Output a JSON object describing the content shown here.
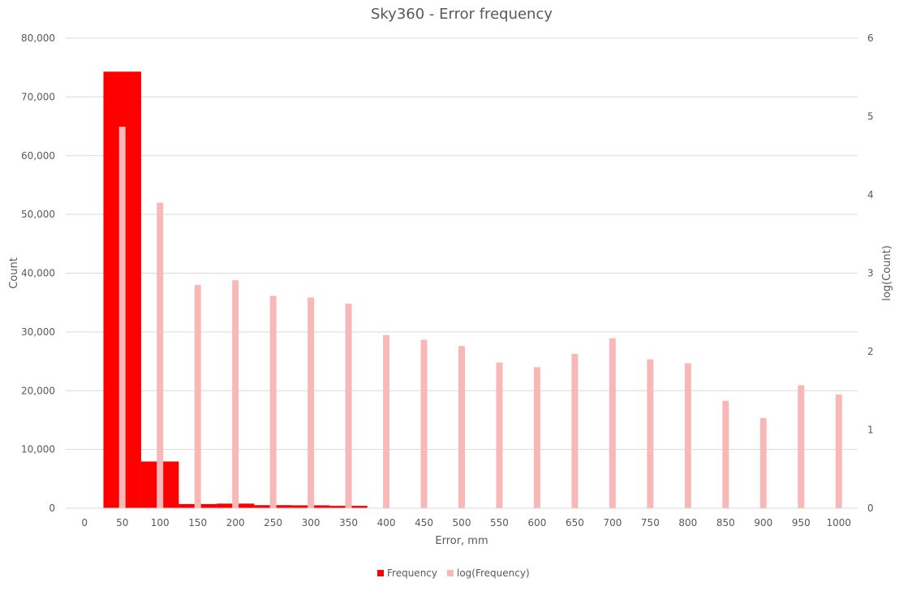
{
  "chart_data": {
    "type": "bar",
    "title": "Sky360 - Error frequency",
    "xlabel": "Error, mm",
    "ylabel": "Count",
    "y2label": "log(Count)",
    "x": [
      0,
      50,
      100,
      150,
      200,
      250,
      300,
      350,
      400,
      450,
      500,
      550,
      600,
      650,
      700,
      750,
      800,
      850,
      900,
      950,
      1000
    ],
    "x_tick_labels": [
      "0",
      "50",
      "100",
      "150",
      "200",
      "250",
      "300",
      "350",
      "400",
      "450",
      "500",
      "550",
      "600",
      "650",
      "700",
      "750",
      "800",
      "850",
      "900",
      "950",
      "1000"
    ],
    "ylim": [
      0,
      80000
    ],
    "y_ticks": [
      0,
      10000,
      20000,
      30000,
      40000,
      50000,
      60000,
      70000,
      80000
    ],
    "y_tick_labels": [
      "0",
      "10,000",
      "20,000",
      "30,000",
      "40,000",
      "50,000",
      "60,000",
      "70,000",
      "80,000"
    ],
    "y2lim": [
      0,
      6
    ],
    "y2_ticks": [
      0,
      1,
      2,
      3,
      4,
      5,
      6
    ],
    "y2_tick_labels": [
      "0",
      "1",
      "2",
      "3",
      "4",
      "5",
      "6"
    ],
    "grid": true,
    "legend_position": "bottom",
    "series": [
      {
        "name": "Frequency",
        "axis": "left",
        "color": "#ff0000",
        "values": [
          null,
          74300,
          7950,
          700,
          780,
          520,
          490,
          400,
          null,
          null,
          null,
          null,
          null,
          null,
          null,
          null,
          null,
          null,
          null,
          null,
          null
        ]
      },
      {
        "name": "log(Frequency)",
        "axis": "right",
        "color": "#f9b8b8",
        "values": [
          null,
          4.87,
          3.9,
          2.85,
          2.91,
          2.71,
          2.69,
          2.61,
          2.21,
          2.15,
          2.07,
          1.86,
          1.8,
          1.97,
          2.17,
          1.9,
          1.85,
          1.37,
          1.15,
          1.57,
          1.45
        ]
      }
    ]
  }
}
